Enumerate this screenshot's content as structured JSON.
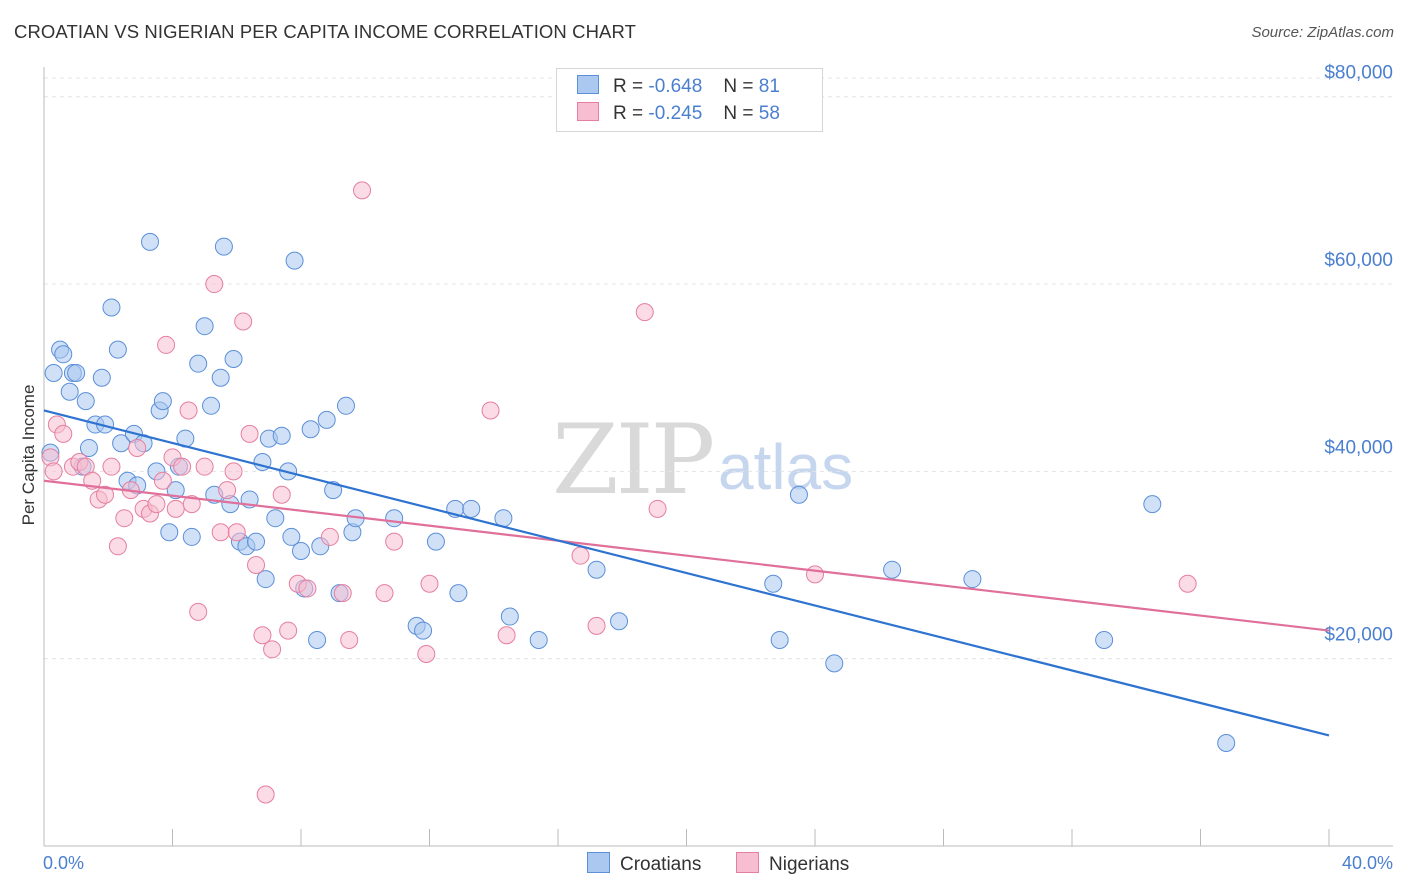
{
  "title": "CROATIAN VS NIGERIAN PER CAPITA INCOME CORRELATION CHART",
  "source": "Source: ZipAtlas.com",
  "watermark": {
    "zip": "ZIP",
    "atlas": "atlas"
  },
  "legend": {
    "rows": [
      {
        "r_label": "R =",
        "r_value": "-0.648",
        "n_label": "N =",
        "n_value": "81"
      },
      {
        "r_label": "R =",
        "r_value": "-0.245",
        "n_label": "N =",
        "n_value": "58"
      }
    ]
  },
  "bottom_legend": {
    "croatians": "Croatians",
    "nigerians": "Nigerians"
  },
  "colors": {
    "blue_fill": "#aac8f0",
    "blue_stroke": "#5b8fd8",
    "blue_line": "#2f73d1",
    "pink_fill": "#f7bdd0",
    "pink_stroke": "#e57fa0",
    "pink_line": "#e0709a",
    "label_blue": "#4a7fd0"
  },
  "chart_data": {
    "type": "scatter",
    "title": "CROATIAN VS NIGERIAN PER CAPITA INCOME CORRELATION CHART",
    "xlabel": "",
    "ylabel": "Per Capita Income",
    "xlim": [
      0,
      40
    ],
    "ylim": [
      0,
      82000
    ],
    "x_tick_labels": [
      "0.0%",
      "40.0%"
    ],
    "y_ticks": [
      20000,
      40000,
      60000,
      80000
    ],
    "y_tick_labels": [
      "$20,000",
      "$40,000",
      "$60,000",
      "$80,000"
    ],
    "series": [
      {
        "name": "Croatians",
        "r": -0.648,
        "n": 81,
        "trend": {
          "x": [
            0,
            40
          ],
          "y": [
            46500,
            11800
          ]
        },
        "points": [
          [
            0.3,
            50500
          ],
          [
            0.5,
            53000
          ],
          [
            0.6,
            52500
          ],
          [
            0.8,
            48500
          ],
          [
            0.9,
            50500
          ],
          [
            1.0,
            50500
          ],
          [
            1.3,
            47500
          ],
          [
            1.4,
            42500
          ],
          [
            1.6,
            45000
          ],
          [
            1.8,
            50000
          ],
          [
            1.9,
            45000
          ],
          [
            2.1,
            57500
          ],
          [
            2.3,
            53000
          ],
          [
            2.4,
            43000
          ],
          [
            2.6,
            39000
          ],
          [
            2.8,
            44000
          ],
          [
            3.1,
            43000
          ],
          [
            3.3,
            64500
          ],
          [
            3.5,
            40000
          ],
          [
            3.6,
            46500
          ],
          [
            3.7,
            47500
          ],
          [
            3.9,
            33500
          ],
          [
            4.1,
            38000
          ],
          [
            4.2,
            40500
          ],
          [
            4.4,
            43500
          ],
          [
            4.6,
            33000
          ],
          [
            4.8,
            51500
          ],
          [
            5.0,
            55500
          ],
          [
            5.2,
            47000
          ],
          [
            5.3,
            37500
          ],
          [
            5.5,
            50000
          ],
          [
            5.6,
            64000
          ],
          [
            5.8,
            36500
          ],
          [
            5.9,
            52000
          ],
          [
            6.1,
            32500
          ],
          [
            6.3,
            32000
          ],
          [
            6.4,
            37000
          ],
          [
            6.6,
            32500
          ],
          [
            6.8,
            41000
          ],
          [
            6.9,
            28500
          ],
          [
            7.0,
            43500
          ],
          [
            7.2,
            35000
          ],
          [
            7.4,
            43800
          ],
          [
            7.6,
            40000
          ],
          [
            7.7,
            33000
          ],
          [
            7.8,
            62500
          ],
          [
            8.0,
            31500
          ],
          [
            8.1,
            27500
          ],
          [
            8.3,
            44500
          ],
          [
            8.5,
            22000
          ],
          [
            8.6,
            32000
          ],
          [
            8.8,
            45500
          ],
          [
            9.0,
            38000
          ],
          [
            9.2,
            27000
          ],
          [
            9.4,
            47000
          ],
          [
            9.6,
            33500
          ],
          [
            9.7,
            35000
          ],
          [
            10.9,
            35000
          ],
          [
            11.6,
            23500
          ],
          [
            11.8,
            23000
          ],
          [
            12.2,
            32500
          ],
          [
            12.8,
            36000
          ],
          [
            12.9,
            27000
          ],
          [
            13.3,
            36000
          ],
          [
            14.3,
            35000
          ],
          [
            14.5,
            24500
          ],
          [
            15.4,
            22000
          ],
          [
            17.2,
            29500
          ],
          [
            17.9,
            24000
          ],
          [
            22.7,
            28000
          ],
          [
            22.9,
            22000
          ],
          [
            23.5,
            37500
          ],
          [
            24.6,
            19500
          ],
          [
            26.4,
            29500
          ],
          [
            28.9,
            28500
          ],
          [
            33.0,
            22000
          ],
          [
            34.5,
            36500
          ],
          [
            36.8,
            11000
          ],
          [
            0.2,
            42000
          ],
          [
            1.2,
            40500
          ],
          [
            2.9,
            38500
          ]
        ]
      },
      {
        "name": "Nigerians",
        "r": -0.245,
        "n": 58,
        "trend": {
          "x": [
            0,
            40
          ],
          "y": [
            39000,
            23000
          ]
        },
        "points": [
          [
            0.2,
            41500
          ],
          [
            0.4,
            45000
          ],
          [
            0.6,
            44000
          ],
          [
            0.9,
            40500
          ],
          [
            1.1,
            41000
          ],
          [
            1.3,
            40500
          ],
          [
            1.5,
            39000
          ],
          [
            1.7,
            37000
          ],
          [
            1.9,
            37500
          ],
          [
            2.1,
            40500
          ],
          [
            2.3,
            32000
          ],
          [
            2.5,
            35000
          ],
          [
            2.7,
            38000
          ],
          [
            2.9,
            42500
          ],
          [
            3.1,
            36000
          ],
          [
            3.3,
            35500
          ],
          [
            3.5,
            36500
          ],
          [
            3.7,
            39000
          ],
          [
            3.8,
            53500
          ],
          [
            4.0,
            41500
          ],
          [
            4.1,
            36000
          ],
          [
            4.3,
            40500
          ],
          [
            4.5,
            46500
          ],
          [
            4.6,
            36500
          ],
          [
            4.8,
            25000
          ],
          [
            5.0,
            40500
          ],
          [
            5.3,
            60000
          ],
          [
            5.5,
            33500
          ],
          [
            5.7,
            38000
          ],
          [
            5.9,
            40000
          ],
          [
            6.0,
            33500
          ],
          [
            6.2,
            56000
          ],
          [
            6.4,
            44000
          ],
          [
            6.6,
            30000
          ],
          [
            6.8,
            22500
          ],
          [
            6.9,
            5500
          ],
          [
            7.1,
            21000
          ],
          [
            7.4,
            37500
          ],
          [
            7.6,
            23000
          ],
          [
            7.9,
            28000
          ],
          [
            8.2,
            27500
          ],
          [
            8.9,
            33000
          ],
          [
            9.3,
            27000
          ],
          [
            9.5,
            22000
          ],
          [
            9.9,
            70000
          ],
          [
            10.6,
            27000
          ],
          [
            10.9,
            32500
          ],
          [
            11.9,
            20500
          ],
          [
            12.0,
            28000
          ],
          [
            13.9,
            46500
          ],
          [
            14.4,
            22500
          ],
          [
            16.7,
            31000
          ],
          [
            17.2,
            23500
          ],
          [
            18.7,
            57000
          ],
          [
            19.1,
            36000
          ],
          [
            24.0,
            29000
          ],
          [
            35.6,
            28000
          ],
          [
            0.3,
            40000
          ]
        ]
      }
    ]
  }
}
